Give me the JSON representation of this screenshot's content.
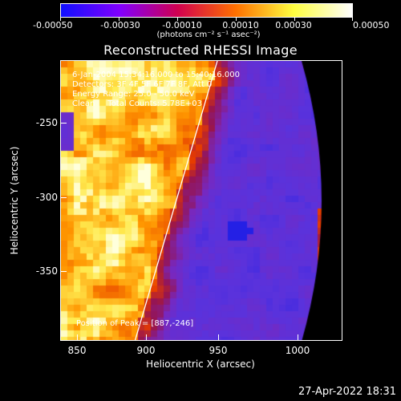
{
  "colorbar": {
    "ticks": [
      "-0.00050",
      "-0.00030",
      "-0.00010",
      "0.00010",
      "0.00030",
      "0.00050"
    ],
    "units": "(photons cm⁻² s⁻¹ asec⁻²)",
    "range": [
      -0.0005,
      0.0005
    ],
    "colors": [
      "#1010ff",
      "#8000ff",
      "#d00050",
      "#ff7000",
      "#ffff40",
      "#ffffff"
    ]
  },
  "title": "Reconstructed RHESSI Image",
  "annotations": {
    "line1": "6-Jan-2004 15:34:16.000 to 15:40:16.000",
    "line2": "Detectors: 3F 4F 5F 6F 7F 8F, Att 0",
    "line3": "Energy Range: 25.0 - 50.0 keV",
    "line4": "Clean     Total Counts: 5.78E+03",
    "peak": "Position of Peak = [887,-246]"
  },
  "axes": {
    "xlabel": "Heliocentric X (arcsec)",
    "ylabel": "Heliocentric Y (arcsec)",
    "xticks": [
      "850",
      "900",
      "950",
      "1000"
    ],
    "yticks": [
      "-250",
      "-300",
      "-350"
    ],
    "xlim": [
      840,
      1030
    ],
    "ylim": [
      -395,
      -220
    ]
  },
  "timestamp": "27-Apr-2022 18:31",
  "colors": {
    "background": "#000000",
    "foreground": "#ffffff",
    "limb_line": "#ffffff"
  }
}
